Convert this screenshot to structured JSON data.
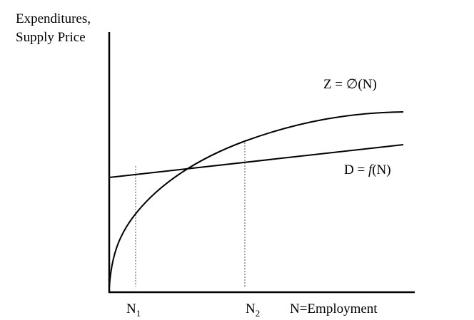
{
  "y_axis_label": [
    "Expenditures,",
    "Supply Price"
  ],
  "curves": [
    {
      "label_parts": [
        "Z = ",
        "∅",
        "(N)"
      ]
    },
    {
      "label_parts": [
        "D = ",
        "f",
        "(N)"
      ]
    }
  ],
  "x_markers": [
    {
      "label": "N",
      "subscript": "1"
    },
    {
      "label": "N",
      "subscript": "2"
    }
  ],
  "x_axis_label": "N=Employment"
}
